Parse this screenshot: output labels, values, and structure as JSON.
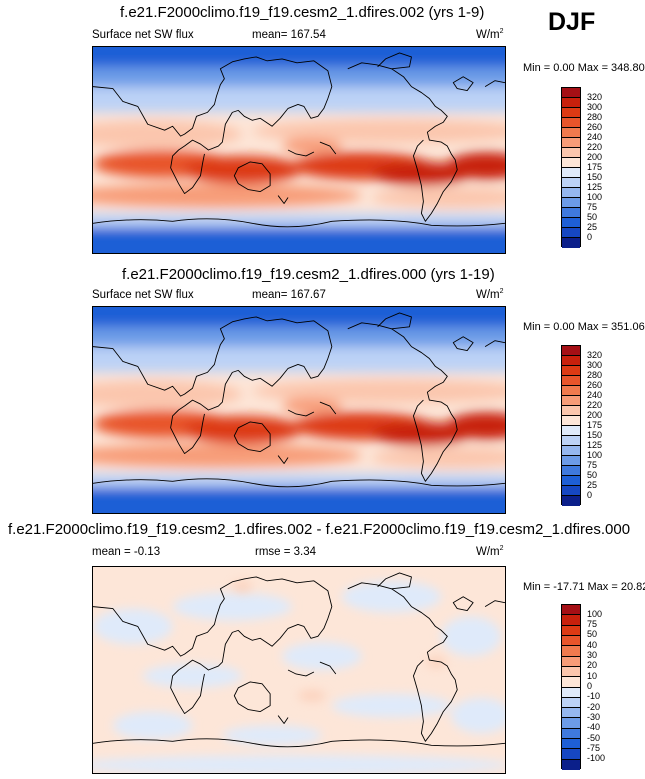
{
  "season": "DJF",
  "panels": [
    {
      "title": "f.e21.F2000climo.f19_f19.cesm2_1.dfires.002 (yrs 1-9)",
      "left_label": "Surface net SW flux",
      "center_label": "mean= 167.54",
      "units": "W/m",
      "units_sup": "2",
      "minmax": "Min =   0.00 Max = 348.80",
      "levels": [
        "320",
        "300",
        "280",
        "260",
        "240",
        "220",
        "200",
        "175",
        "150",
        "125",
        "100",
        "75",
        "50",
        "25",
        "0"
      ],
      "colors": [
        "#a50f15",
        "#c8200c",
        "#dd3a14",
        "#e8552b",
        "#f07a4e",
        "#f79c78",
        "#fbc6ad",
        "#fde6d8",
        "#dfeafa",
        "#bcd2f6",
        "#95b7ef",
        "#6c9be7",
        "#3f79dd",
        "#1e5fd6",
        "#1647c2",
        "#0b1f8a"
      ]
    },
    {
      "title": "f.e21.F2000climo.f19_f19.cesm2_1.dfires.000 (yrs 1-19)",
      "left_label": "Surface net SW flux",
      "center_label": "mean= 167.67",
      "units": "W/m",
      "units_sup": "2",
      "minmax": "Min =   0.00 Max = 351.06",
      "levels": [
        "320",
        "300",
        "280",
        "260",
        "240",
        "220",
        "200",
        "175",
        "150",
        "125",
        "100",
        "75",
        "50",
        "25",
        "0"
      ],
      "colors": [
        "#a50f15",
        "#c8200c",
        "#dd3a14",
        "#e8552b",
        "#f07a4e",
        "#f79c78",
        "#fbc6ad",
        "#fde6d8",
        "#dfeafa",
        "#bcd2f6",
        "#95b7ef",
        "#6c9be7",
        "#3f79dd",
        "#1e5fd6",
        "#1647c2",
        "#0b1f8a"
      ]
    },
    {
      "title": "f.e21.F2000climo.f19_f19.cesm2_1.dfires.002 - f.e21.F2000climo.f19_f19.cesm2_1.dfires.000",
      "left_label": "mean =  -0.13",
      "center_label": "rmse =   3.34",
      "units": "W/m",
      "units_sup": "2",
      "minmax": "Min = -17.71 Max =  20.82",
      "levels": [
        "100",
        "75",
        "50",
        "40",
        "30",
        "20",
        "10",
        "0",
        "-10",
        "-20",
        "-30",
        "-40",
        "-50",
        "-75",
        "-100"
      ],
      "colors": [
        "#a50f15",
        "#c8200c",
        "#dd3a14",
        "#e8552b",
        "#f07a4e",
        "#f79c78",
        "#fbc6ad",
        "#fde6d8",
        "#dfeafa",
        "#bcd2f6",
        "#95b7ef",
        "#6c9be7",
        "#3f79dd",
        "#1e5fd6",
        "#1647c2",
        "#0b1f8a"
      ]
    }
  ]
}
